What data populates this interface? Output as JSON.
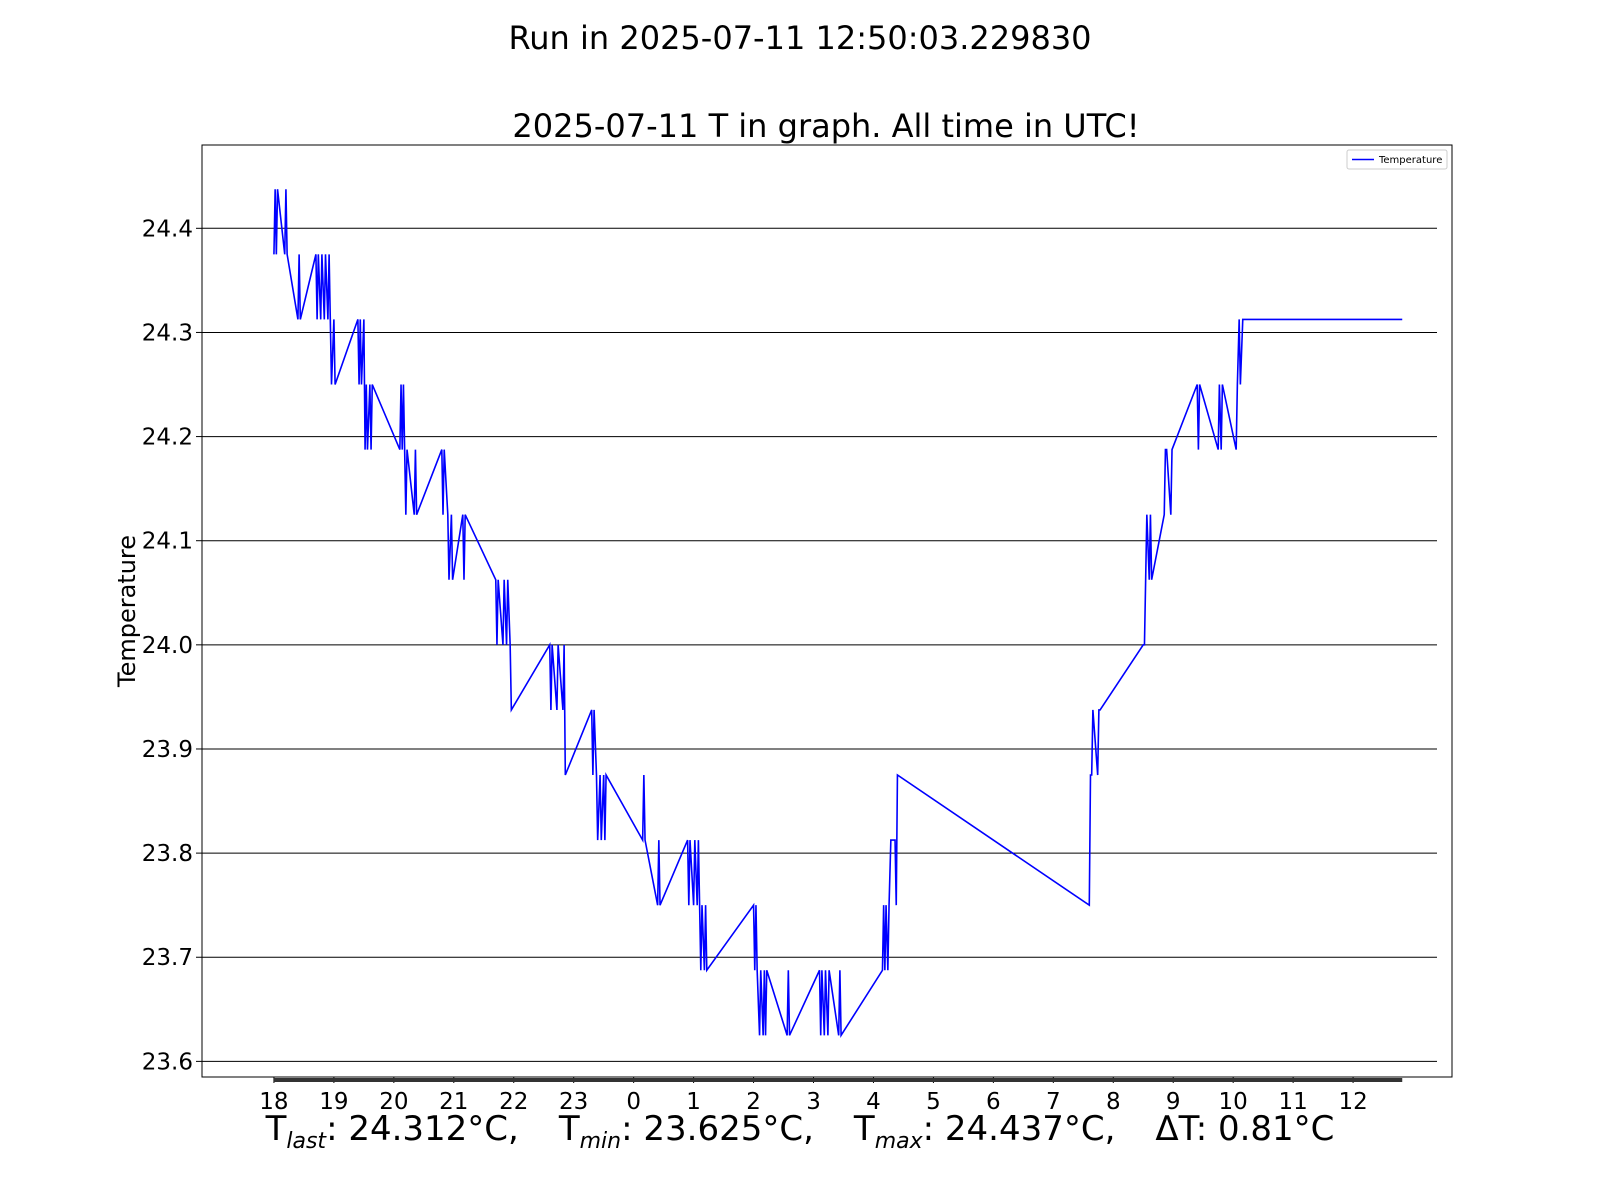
{
  "figure": {
    "run_title": "Run in 2025-07-11 12:50:03.229830"
  },
  "chart_data": {
    "type": "line",
    "title": "2025-07-11 T in graph. All time in UTC!",
    "xlabel": "",
    "ylabel": "Temperature",
    "x_unit": "hour (UTC), continuing past midnight",
    "xlim": [
      16.8,
      37.65
    ],
    "ylim": [
      23.585,
      24.48
    ],
    "x_ticks": [
      18,
      19,
      20,
      21,
      22,
      23,
      24,
      25,
      26,
      27,
      28,
      29,
      30,
      31,
      32,
      33,
      34,
      35,
      36
    ],
    "x_tick_labels": [
      "18",
      "19",
      "20",
      "21",
      "22",
      "23",
      "0",
      "1",
      "2",
      "3",
      "4",
      "5",
      "6",
      "7",
      "8",
      "9",
      "10",
      "11",
      "12"
    ],
    "y_ticks": [
      23.6,
      23.7,
      23.8,
      23.9,
      24.0,
      24.1,
      24.2,
      24.3,
      24.4
    ],
    "y_tick_labels": [
      "23.6",
      "23.7",
      "23.8",
      "23.9",
      "24.0",
      "24.1",
      "24.2",
      "24.3",
      "24.4"
    ],
    "grid": "horizontal",
    "legend_position": "top-right",
    "series": [
      {
        "name": "Temperature",
        "color": "#0000ff",
        "x": [
          18.0,
          18.02,
          18.04,
          18.06,
          18.18,
          18.2,
          18.22,
          18.4,
          18.42,
          18.44,
          18.7,
          18.72,
          18.74,
          18.78,
          18.8,
          18.84,
          18.86,
          18.9,
          18.92,
          18.94,
          18.96,
          19.0,
          19.02,
          19.4,
          19.42,
          19.44,
          19.46,
          19.5,
          19.52,
          19.54,
          19.56,
          19.6,
          19.62,
          19.64,
          20.1,
          20.12,
          20.14,
          20.16,
          20.2,
          20.22,
          20.34,
          20.36,
          20.38,
          20.8,
          20.82,
          20.84,
          20.9,
          20.92,
          20.96,
          20.98,
          21.15,
          21.17,
          21.19,
          21.7,
          21.72,
          21.74,
          21.82,
          21.84,
          21.88,
          21.9,
          21.94,
          21.96,
          22.6,
          22.62,
          22.64,
          22.72,
          22.74,
          22.82,
          22.84,
          22.86,
          23.3,
          23.32,
          23.34,
          23.38,
          23.4,
          23.44,
          23.46,
          23.5,
          23.52,
          23.54,
          24.15,
          24.17,
          24.19,
          24.4,
          24.42,
          24.44,
          24.9,
          24.92,
          24.94,
          25.0,
          25.02,
          25.06,
          25.08,
          25.12,
          25.14,
          25.18,
          25.2,
          25.22,
          26.0,
          26.02,
          26.04,
          26.06,
          26.1,
          26.12,
          26.16,
          26.18,
          26.2,
          26.22,
          26.56,
          26.58,
          26.6,
          27.1,
          27.12,
          27.14,
          27.18,
          27.2,
          27.24,
          27.26,
          27.42,
          27.44,
          27.46,
          28.15,
          28.17,
          28.19,
          28.21,
          28.24,
          28.26,
          28.29,
          28.31,
          28.36,
          28.38,
          28.4,
          31.6,
          31.62,
          31.64,
          31.66,
          31.74,
          31.76,
          31.78,
          32.5,
          32.52,
          32.54,
          32.56,
          32.6,
          32.62,
          32.64,
          32.85,
          32.87,
          32.89,
          32.96,
          32.98,
          33.4,
          33.42,
          33.44,
          33.75,
          33.77,
          33.8,
          33.82,
          34.05,
          34.07,
          34.1,
          34.12,
          34.16,
          34.18,
          34.4,
          34.42,
          34.44,
          34.75,
          34.77,
          34.8,
          34.82,
          34.85,
          34.87,
          35.2,
          35.22,
          35.24,
          35.71,
          35.73,
          35.75,
          36.0,
          36.02,
          36.04,
          36.06,
          36.1,
          36.12,
          36.16,
          36.18,
          36.2,
          36.22,
          36.24,
          36.3,
          36.32,
          36.36,
          36.38,
          36.7,
          36.72,
          36.75,
          36.82
        ]
      }
    ]
  },
  "footer": {
    "t_last_symbol": "T",
    "t_last_sub": "last",
    "t_last_value": ": 24.312°C,",
    "t_min_symbol": "T",
    "t_min_sub": "min",
    "t_min_value": ": 23.625°C,",
    "t_max_symbol": "T",
    "t_max_sub": "max",
    "t_max_value": ": 24.437°C,",
    "delta_label": "ΔT: 0.81°C"
  }
}
